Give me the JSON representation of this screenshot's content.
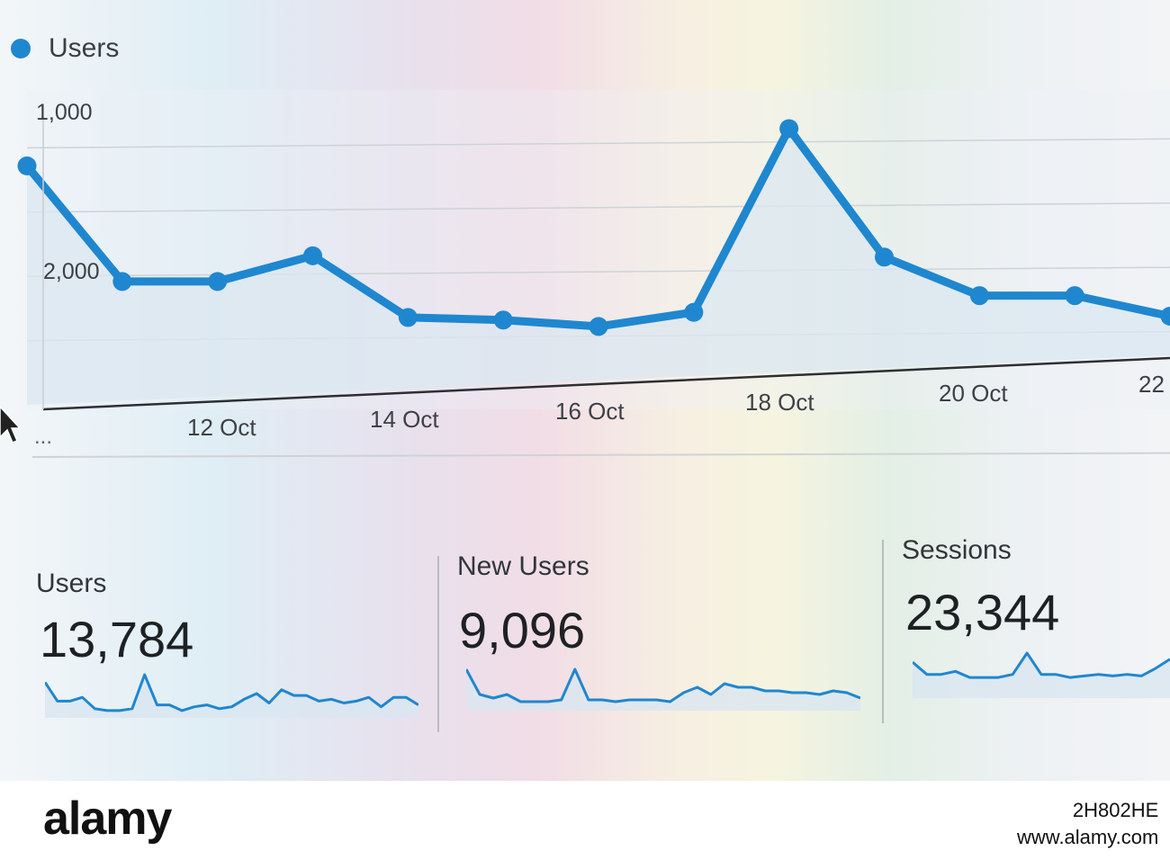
{
  "legend": {
    "label": "Users",
    "color": "#1f87cf"
  },
  "chart_data": {
    "type": "area",
    "series": [
      {
        "name": "Users",
        "x": [
          "10 Oct",
          "11 Oct",
          "12 Oct",
          "13 Oct",
          "14 Oct",
          "15 Oct",
          "16 Oct",
          "17 Oct",
          "18 Oct",
          "19 Oct",
          "20 Oct",
          "21 Oct",
          "22 Oct"
        ],
        "values": [
          1860,
          960,
          960,
          1160,
          680,
          660,
          610,
          720,
          2150,
          1150,
          850,
          850,
          690
        ]
      }
    ],
    "y_ticks": [
      "1,000",
      "2,000"
    ],
    "x_ticks": [
      "12 Oct",
      "14 Oct",
      "16 Oct",
      "18 Oct",
      "20 Oct",
      "22"
    ],
    "ylim": [
      0,
      2500
    ],
    "grid": true,
    "color": "#1f87cf",
    "fill_color": "#dbe7f0"
  },
  "axis_ellipsis": "...",
  "metrics": [
    {
      "label": "Users",
      "value": "13,784",
      "spark": [
        8,
        3,
        3,
        4,
        1,
        0.5,
        0.5,
        1,
        10,
        2,
        2,
        0.5,
        1.5,
        2,
        1,
        1.5,
        3.5,
        5,
        2.5,
        6,
        4.5,
        4.5,
        3,
        3.5,
        2.5,
        3,
        4,
        1.5,
        4,
        4,
        2
      ]
    },
    {
      "label": "New Users",
      "value": "9,096",
      "spark": [
        10,
        3,
        2,
        3,
        1,
        1,
        1,
        1.5,
        10,
        1.5,
        1.5,
        1,
        1.5,
        1.5,
        1.5,
        1,
        3.5,
        5,
        3,
        6,
        5,
        5,
        4,
        4,
        3.5,
        3.5,
        3,
        4,
        3.5,
        2
      ]
    },
    {
      "label": "Sessions",
      "value": "23,344",
      "spark": [
        10,
        6,
        6,
        7,
        5,
        5,
        5,
        6,
        13,
        6,
        6,
        5,
        5.5,
        6,
        5.5,
        6,
        5.5,
        8,
        11
      ]
    }
  ],
  "footer": {
    "logo": "alamy",
    "image_id": "2H802HE",
    "site": "www.alamy.com"
  }
}
